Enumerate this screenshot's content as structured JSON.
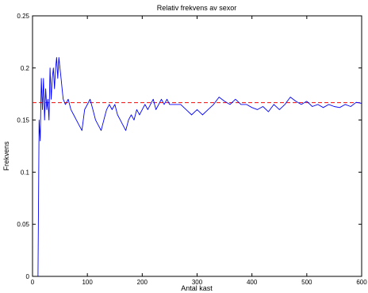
{
  "chart_data": {
    "type": "line",
    "title": "Relativ frekvens av sexor",
    "xlabel": "Antal kast",
    "ylabel": "Frekvens",
    "xlim": [
      0,
      600
    ],
    "ylim": [
      0,
      0.25
    ],
    "grid": false,
    "x_ticks": [
      0,
      100,
      200,
      300,
      400,
      500,
      600
    ],
    "y_ticks": [
      0,
      0.05,
      0.1,
      0.15,
      0.2,
      0.25
    ],
    "x_tick_labels": [
      "0",
      "100",
      "200",
      "300",
      "400",
      "500",
      "600"
    ],
    "y_tick_labels": [
      "0",
      "0.05",
      "0.1",
      "0.15",
      "0.2",
      "0.25"
    ],
    "reference_line": {
      "y": 0.1667,
      "color": "#ff0000",
      "style": "dashed"
    },
    "series": [
      {
        "color": "#0000ff",
        "x": [
          10,
          12,
          14,
          16,
          18,
          20,
          22,
          24,
          26,
          28,
          30,
          32,
          34,
          36,
          38,
          40,
          42,
          44,
          46,
          48,
          50,
          52,
          54,
          56,
          60,
          65,
          70,
          75,
          80,
          85,
          90,
          95,
          100,
          105,
          110,
          115,
          120,
          125,
          130,
          135,
          140,
          145,
          150,
          155,
          160,
          165,
          170,
          175,
          180,
          185,
          190,
          195,
          200,
          205,
          210,
          215,
          220,
          225,
          230,
          235,
          240,
          245,
          250,
          260,
          270,
          280,
          290,
          300,
          310,
          320,
          330,
          340,
          350,
          360,
          370,
          380,
          390,
          400,
          410,
          420,
          430,
          440,
          450,
          460,
          470,
          480,
          490,
          500,
          510,
          520,
          530,
          540,
          550,
          560,
          570,
          580,
          590,
          600
        ],
        "values": [
          0,
          0.15,
          0.13,
          0.19,
          0.16,
          0.19,
          0.15,
          0.18,
          0.16,
          0.17,
          0.15,
          0.2,
          0.17,
          0.19,
          0.2,
          0.18,
          0.2,
          0.21,
          0.19,
          0.21,
          0.2,
          0.19,
          0.18,
          0.17,
          0.165,
          0.17,
          0.16,
          0.155,
          0.15,
          0.145,
          0.14,
          0.16,
          0.165,
          0.17,
          0.16,
          0.15,
          0.145,
          0.14,
          0.15,
          0.16,
          0.165,
          0.16,
          0.165,
          0.155,
          0.15,
          0.145,
          0.14,
          0.15,
          0.155,
          0.15,
          0.16,
          0.155,
          0.16,
          0.165,
          0.16,
          0.165,
          0.17,
          0.16,
          0.165,
          0.17,
          0.165,
          0.17,
          0.165,
          0.165,
          0.165,
          0.16,
          0.155,
          0.16,
          0.155,
          0.16,
          0.165,
          0.172,
          0.168,
          0.165,
          0.17,
          0.165,
          0.165,
          0.162,
          0.16,
          0.163,
          0.158,
          0.165,
          0.16,
          0.165,
          0.172,
          0.168,
          0.165,
          0.168,
          0.163,
          0.165,
          0.162,
          0.165,
          0.163,
          0.162,
          0.165,
          0.163,
          0.167,
          0.166
        ]
      }
    ]
  }
}
